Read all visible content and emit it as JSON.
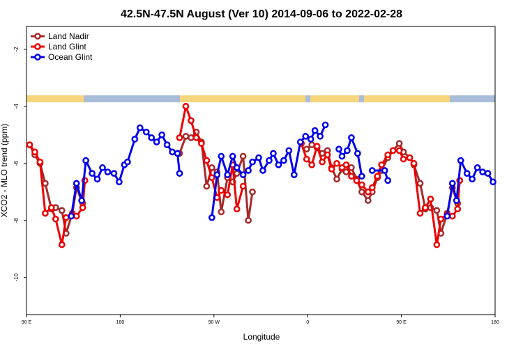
{
  "chart_data": {
    "type": "line",
    "title": "42.5N-47.5N August (Ver 10)   2014-09-06 to 2022-02-28",
    "xlabel": "Longitude",
    "ylabel": "XCO2 - MLO trend (ppm)",
    "xlim": [
      90,
      540
    ],
    "ylim": [
      -11.3,
      -1.2
    ],
    "xticks": [
      {
        "value": 90,
        "label": "90 E"
      },
      {
        "value": 180,
        "label": "180"
      },
      {
        "value": 270,
        "label": "90 W"
      },
      {
        "value": 360,
        "label": "0"
      },
      {
        "value": 450,
        "label": "90 E"
      },
      {
        "value": 540,
        "label": "180"
      }
    ],
    "yticks": [
      -2,
      -4,
      -6,
      -8,
      -10
    ],
    "legend": "upper left",
    "series": [
      {
        "name": "Land Nadir",
        "color": "#a52a2a",
        "x": [
          93,
          98,
          103,
          108,
          114,
          118,
          124,
          128,
          134,
          138,
          144,
          146,
          null,
          237,
          243,
          248,
          253,
          258,
          263,
          268,
          273,
          277,
          283,
          288,
          292,
          298,
          303,
          307,
          null,
          359,
          364,
          369,
          374,
          379,
          383,
          388,
          393,
          397,
          402,
          407,
          412,
          418,
          422,
          427,
          431,
          437,
          442,
          448,
          452,
          458,
          462,
          468,
          473,
          478,
          484,
          488,
          494,
          499,
          504,
          506
        ],
        "values": [
          -5.35,
          -5.7,
          -6.0,
          -6.7,
          -7.6,
          -7.55,
          -7.65,
          -8.45,
          -7.75,
          -6.85,
          -7.4,
          -6.6,
          null,
          -5.65,
          -5.05,
          -5.1,
          -4.9,
          -5.25,
          -6.8,
          -6.15,
          -6.3,
          -7.7,
          -6.5,
          -6.65,
          -6.35,
          -5.75,
          -8.0,
          -7.0,
          null,
          -5.5,
          -5.35,
          -5.45,
          -5.65,
          -5.55,
          -6.15,
          -6.55,
          -6.2,
          -6.3,
          -6.15,
          -6.55,
          -7.0,
          -7.3,
          -7.0,
          -6.5,
          -6.25,
          -5.8,
          -5.55,
          -5.3,
          -5.6,
          -5.8,
          -6.05,
          -6.7,
          -7.6,
          -7.55,
          -7.65,
          -8.45,
          -7.75,
          -6.85,
          -7.4,
          -6.6
        ]
      },
      {
        "name": "Land Glint",
        "color": "#ee0000",
        "x": [
          93,
          98,
          103,
          108,
          114,
          118,
          124,
          128,
          134,
          138,
          144,
          146,
          null,
          237,
          243,
          248,
          253,
          258,
          263,
          268,
          273,
          277,
          283,
          288,
          292,
          298,
          null,
          354,
          359,
          364,
          369,
          374,
          379,
          383,
          388,
          393,
          397,
          402,
          407,
          412,
          418,
          422,
          427,
          431,
          437,
          442,
          448,
          452,
          458,
          462,
          468,
          473,
          478,
          484,
          488,
          494,
          499,
          504,
          506
        ],
        "values": [
          -5.35,
          -5.6,
          -5.95,
          -7.75,
          -7.55,
          -7.95,
          -8.85,
          -7.9,
          -7.8,
          -7.85,
          -7.55,
          -6.6,
          null,
          -5.1,
          -4.0,
          -4.5,
          -5.1,
          -5.3,
          -5.9,
          -6.5,
          -7.2,
          -6.95,
          -7.1,
          -6.05,
          -7.6,
          -6.8,
          null,
          -5.3,
          -5.85,
          -6.05,
          -5.4,
          -5.95,
          -5.7,
          -6.2,
          -6.0,
          -6.15,
          -6.05,
          -6.45,
          -6.6,
          -6.75,
          -7.0,
          -6.85,
          -6.45,
          -6.05,
          -5.7,
          -5.55,
          -5.55,
          -5.85,
          -5.8,
          -6.0,
          -7.75,
          -7.55,
          -7.25,
          -8.85,
          -7.95,
          -7.8,
          -7.85,
          -7.6,
          -6.6
        ]
      },
      {
        "name": "Ocean Glint",
        "color": "#0000ee",
        "x": [
          133,
          138,
          143,
          147,
          153,
          158,
          163,
          168,
          174,
          179,
          184,
          187,
          194,
          199,
          205,
          210,
          215,
          220,
          225,
          230,
          235,
          237,
          null,
          268,
          273,
          277,
          283,
          288,
          292,
          298,
          303,
          307,
          313,
          317,
          323,
          327,
          332,
          337,
          342,
          347,
          353,
          358,
          363,
          367,
          372,
          377,
          null,
          390,
          393,
          398,
          402,
          408,
          412,
          null,
          422,
          434,
          437,
          null,
          494,
          499,
          503,
          507,
          513,
          518,
          523,
          528,
          533,
          538
        ],
        "values": [
          -7.85,
          -6.7,
          -7.3,
          -5.9,
          -6.35,
          -6.55,
          -6.15,
          -6.3,
          -6.35,
          -6.65,
          -6.05,
          -5.95,
          -5.15,
          -4.75,
          -4.9,
          -5.1,
          -5.25,
          -5.0,
          -5.35,
          -5.6,
          -5.65,
          -6.35,
          null,
          -7.9,
          -6.4,
          -5.75,
          -6.4,
          -5.75,
          -6.15,
          -6.4,
          -6.25,
          -5.95,
          -5.8,
          -6.25,
          -5.9,
          -5.65,
          -6.05,
          -5.9,
          -5.55,
          -6.4,
          -5.25,
          -5.05,
          -5.15,
          -4.85,
          -5.05,
          -4.65,
          null,
          -5.5,
          -5.75,
          -5.55,
          -5.1,
          -5.65,
          -6.45,
          null,
          -6.25,
          -6.25,
          -6.6,
          null,
          -7.85,
          -6.7,
          -7.3,
          -5.9,
          -6.35,
          -6.55,
          -6.15,
          -6.3,
          -6.35,
          -6.65
        ]
      }
    ]
  }
}
